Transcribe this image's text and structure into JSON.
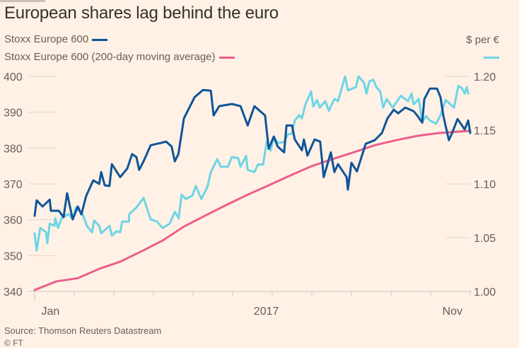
{
  "title": "European shares lag behind the euro",
  "source": "Source: Thomson Reuters Datastream",
  "copyright": "© FT",
  "colors": {
    "background": "#fff1e5",
    "stoxx": "#0f5499",
    "moving_average": "#eb5e8d",
    "usd_per_eur": "#6dd5e5",
    "grid": "#e0d6cc",
    "text": "#66605c"
  },
  "chart_data": {
    "type": "line",
    "title": "European shares lag behind the euro",
    "xlabel": "",
    "x_units": "months from first tick",
    "xlim": [
      0,
      11
    ],
    "x_ticks": [
      0,
      1,
      2,
      3,
      4,
      5,
      6,
      7,
      8,
      9,
      10,
      11
    ],
    "x_tick_labels": [
      {
        "label": "Jan",
        "x": 0.4
      },
      {
        "label": "2017",
        "x": 5.85
      },
      {
        "label": "Nov",
        "x": 10.55
      }
    ],
    "y_left": {
      "label": "",
      "ylim": [
        340,
        400
      ],
      "ticks": [
        "340",
        "350",
        "360",
        "370",
        "380",
        "390",
        "400"
      ]
    },
    "y_right": {
      "label": "$ per €",
      "ylim": [
        1.0,
        1.2
      ],
      "ticks": [
        "1.00",
        "1.05",
        "1.10",
        "1.15",
        "1.20"
      ]
    },
    "grid": true,
    "legend_placement": "top-left",
    "series": [
      {
        "name": "Stoxx Europe 600",
        "axis": "left",
        "color": "#0f5499",
        "x": [
          0,
          0.05,
          0.2,
          0.38,
          0.41,
          0.61,
          0.73,
          0.82,
          0.96,
          1.09,
          1.18,
          1.3,
          1.48,
          1.63,
          1.68,
          1.77,
          1.89,
          1.95,
          2.16,
          2.34,
          2.46,
          2.57,
          2.64,
          2.75,
          2.93,
          3.18,
          3.32,
          3.46,
          3.54,
          3.63,
          3.77,
          4.04,
          4.25,
          4.45,
          4.52,
          4.66,
          4.98,
          5.2,
          5.38,
          5.55,
          5.82,
          5.91,
          6.04,
          6.14,
          6.3,
          6.36,
          6.5,
          6.57,
          6.75,
          6.8,
          6.89,
          7.07,
          7.21,
          7.3,
          7.48,
          7.57,
          7.66,
          7.88,
          7.91,
          8.0,
          8.14,
          8.36,
          8.59,
          8.77,
          8.91,
          9.07,
          9.18,
          9.36,
          9.57,
          9.66,
          9.79,
          9.84,
          9.98,
          10.16,
          10.25,
          10.32,
          10.46,
          10.55,
          10.68,
          10.86,
          10.95,
          11.0
        ],
        "values": [
          361.1,
          365.4,
          363.7,
          365.6,
          362.5,
          362.5,
          360.7,
          367.4,
          360.1,
          363.7,
          361.5,
          366.6,
          371.0,
          370.0,
          373.3,
          369.6,
          369.4,
          375.5,
          371.9,
          374.3,
          378.3,
          377.5,
          373.9,
          376.3,
          380.8,
          381.4,
          381.8,
          380.4,
          376.3,
          378.3,
          388.3,
          394.2,
          396.2,
          396.0,
          389.1,
          391.7,
          392.3,
          391.7,
          386.3,
          391.7,
          389.1,
          379.8,
          383.2,
          380.4,
          378.8,
          386.3,
          386.3,
          382.4,
          379.4,
          382.4,
          377.9,
          382.4,
          381.8,
          371.9,
          378.8,
          373.3,
          375.5,
          371.9,
          368.4,
          375.9,
          373.5,
          381.2,
          382.2,
          384.2,
          388.3,
          390.7,
          389.7,
          391.3,
          390.3,
          389.1,
          387.1,
          393.6,
          396.6,
          396.6,
          394.2,
          389.1,
          382.2,
          384.4,
          388.1,
          385.2,
          387.7,
          384.2
        ]
      },
      {
        "name": "Stoxx Europe 600 (200-day moving average)",
        "axis": "left",
        "color": "#eb5e8d",
        "x": [
          0,
          0.55,
          1.09,
          1.63,
          2.16,
          2.7,
          3.23,
          3.77,
          4.3,
          4.84,
          5.38,
          5.91,
          6.45,
          6.98,
          7.52,
          8.05,
          8.59,
          9.13,
          9.66,
          10.2,
          11.0
        ],
        "values": [
          340.4,
          342.8,
          343.7,
          346.3,
          348.3,
          351.2,
          354.2,
          358.1,
          361.1,
          364.1,
          367.0,
          369.6,
          372.3,
          374.9,
          376.9,
          378.8,
          380.8,
          382.2,
          383.4,
          384.2,
          384.8
        ]
      },
      {
        "name": "$ per €",
        "axis": "right",
        "color": "#6dd5e5",
        "x": [
          0,
          0.05,
          0.14,
          0.29,
          0.32,
          0.38,
          0.5,
          0.52,
          0.59,
          0.68,
          0.86,
          0.96,
          1.04,
          1.21,
          1.32,
          1.45,
          1.5,
          1.63,
          1.68,
          1.89,
          1.95,
          2.07,
          2.16,
          2.21,
          2.38,
          2.39,
          2.57,
          2.75,
          2.93,
          3.09,
          3.23,
          3.41,
          3.54,
          3.64,
          3.71,
          3.82,
          3.98,
          4.07,
          4.21,
          4.36,
          4.45,
          4.61,
          4.7,
          4.88,
          4.98,
          5.14,
          5.2,
          5.34,
          5.38,
          5.55,
          5.64,
          5.77,
          5.86,
          5.96,
          6.04,
          6.14,
          6.3,
          6.39,
          6.5,
          6.57,
          6.68,
          6.75,
          6.84,
          6.98,
          7.04,
          7.13,
          7.2,
          7.34,
          7.43,
          7.57,
          7.66,
          7.84,
          7.91,
          8.11,
          8.18,
          8.32,
          8.38,
          8.45,
          8.55,
          8.63,
          8.73,
          8.8,
          8.89,
          9.04,
          9.25,
          9.43,
          9.52,
          9.57,
          9.7,
          9.79,
          9.89,
          9.98,
          10.14,
          10.25,
          10.38,
          10.59,
          10.7,
          10.79,
          10.86,
          10.91,
          10.95
        ],
        "values": [
          1.054,
          1.038,
          1.059,
          1.055,
          1.045,
          1.063,
          1.061,
          1.068,
          1.059,
          1.068,
          1.072,
          1.067,
          1.078,
          1.072,
          1.061,
          1.055,
          1.066,
          1.061,
          1.054,
          1.061,
          1.052,
          1.056,
          1.055,
          1.065,
          1.065,
          1.072,
          1.078,
          1.087,
          1.067,
          1.065,
          1.059,
          1.063,
          1.074,
          1.068,
          1.09,
          1.086,
          1.089,
          1.098,
          1.086,
          1.097,
          1.111,
          1.123,
          1.116,
          1.116,
          1.125,
          1.124,
          1.116,
          1.126,
          1.113,
          1.111,
          1.118,
          1.118,
          1.139,
          1.131,
          1.144,
          1.138,
          1.139,
          1.146,
          1.147,
          1.159,
          1.164,
          1.161,
          1.174,
          1.186,
          1.172,
          1.178,
          1.171,
          1.177,
          1.168,
          1.179,
          1.177,
          1.2,
          1.187,
          1.19,
          1.2,
          1.194,
          1.184,
          1.195,
          1.197,
          1.19,
          1.186,
          1.171,
          1.179,
          1.171,
          1.182,
          1.177,
          1.184,
          1.174,
          1.179,
          1.158,
          1.163,
          1.159,
          1.156,
          1.164,
          1.178,
          1.171,
          1.191,
          1.189,
          1.184,
          1.19,
          1.184
        ]
      }
    ]
  }
}
